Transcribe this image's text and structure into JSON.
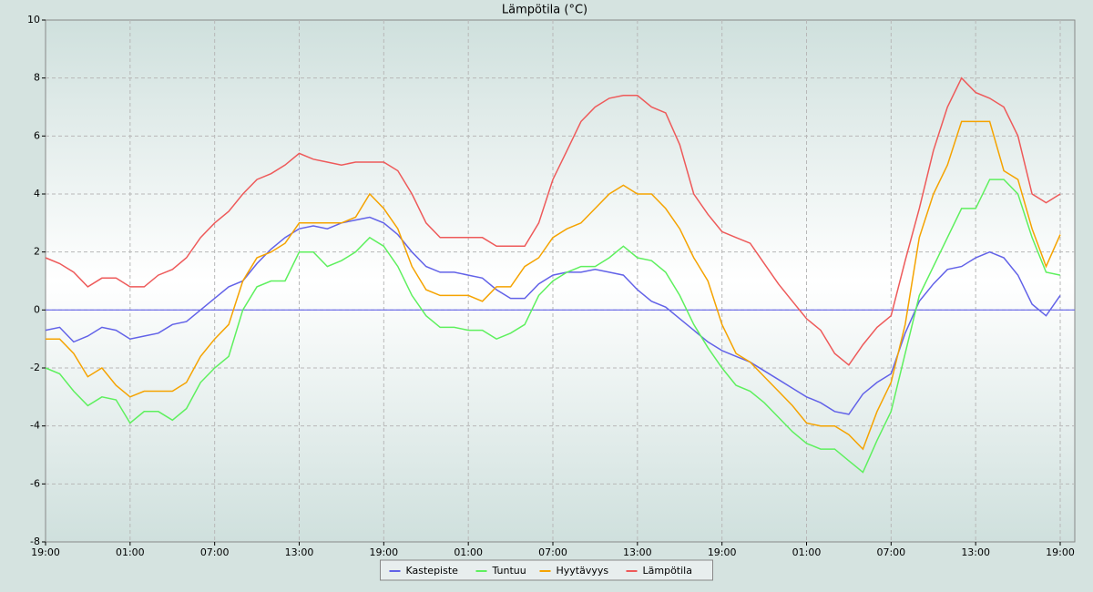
{
  "chart_data": {
    "type": "line",
    "title": "Lämpötila (°C)",
    "categories": [
      "19:00",
      null,
      null,
      null,
      null,
      null,
      "01:00",
      null,
      null,
      null,
      null,
      null,
      "07:00",
      null,
      null,
      null,
      null,
      null,
      "13:00",
      null,
      null,
      null,
      null,
      null,
      "19:00",
      null,
      null,
      null,
      null,
      null,
      "01:00",
      null,
      null,
      null,
      null,
      null,
      "07:00",
      null,
      null,
      null,
      null,
      null,
      "13:00",
      null,
      null,
      null,
      null,
      null,
      "19:00",
      null,
      null,
      null,
      null,
      null,
      "01:00",
      null,
      null,
      null,
      null,
      null,
      "07:00",
      null,
      null,
      null,
      null,
      null,
      "13:00",
      null,
      null,
      null,
      null,
      null,
      "19:00"
    ],
    "ylim": [
      -8,
      10
    ],
    "yticks": [
      -8,
      -6,
      -4,
      -2,
      0,
      2,
      4,
      6,
      8,
      10
    ],
    "grid": true,
    "series": [
      {
        "name": "Kastepiste",
        "color": "#6262e8",
        "values": [
          -0.7,
          -0.6,
          -1.1,
          -0.9,
          -0.6,
          -0.7,
          -1.0,
          -0.9,
          -0.8,
          -0.5,
          -0.4,
          0.0,
          0.4,
          0.8,
          1.0,
          1.6,
          2.1,
          2.5,
          2.8,
          2.9,
          2.8,
          3.0,
          3.1,
          3.2,
          3.0,
          2.6,
          2.0,
          1.5,
          1.3,
          1.3,
          1.2,
          1.1,
          0.7,
          0.4,
          0.4,
          0.9,
          1.2,
          1.3,
          1.3,
          1.4,
          1.3,
          1.2,
          0.7,
          0.3,
          0.1,
          -0.3,
          -0.7,
          -1.1,
          -1.4,
          -1.6,
          -1.8,
          -2.1,
          -2.4,
          -2.7,
          -3.0,
          -3.2,
          -3.5,
          -3.6,
          -2.9,
          -2.5,
          -2.2,
          -0.8,
          0.3,
          0.9,
          1.4,
          1.5,
          1.8,
          2.0,
          1.8,
          1.2,
          0.2,
          -0.2,
          0.5
        ]
      },
      {
        "name": "Tuntuu",
        "color": "#5ef05e",
        "values": [
          -2.0,
          -2.2,
          -2.8,
          -3.3,
          -3.0,
          -3.1,
          -3.9,
          -3.5,
          -3.5,
          -3.8,
          -3.4,
          -2.5,
          -2.0,
          -1.6,
          0.0,
          0.8,
          1.0,
          1.0,
          2.0,
          2.0,
          1.5,
          1.7,
          2.0,
          2.5,
          2.2,
          1.5,
          0.5,
          -0.2,
          -0.6,
          -0.6,
          -0.7,
          -0.7,
          -1.0,
          -0.8,
          -0.5,
          0.5,
          1.0,
          1.3,
          1.5,
          1.5,
          1.8,
          2.2,
          1.8,
          1.7,
          1.3,
          0.5,
          -0.5,
          -1.3,
          -2.0,
          -2.6,
          -2.8,
          -3.2,
          -3.7,
          -4.2,
          -4.6,
          -4.8,
          -4.8,
          -5.2,
          -5.6,
          -4.5,
          -3.5,
          -1.5,
          0.5,
          1.5,
          2.5,
          3.5,
          3.5,
          4.5,
          4.5,
          4.0,
          2.5,
          1.3,
          1.2
        ]
      },
      {
        "name": "Hyytävyys",
        "color": "#f5a300",
        "values": [
          -1.0,
          -1.0,
          -1.5,
          -2.3,
          -2.0,
          -2.6,
          -3.0,
          -2.8,
          -2.8,
          -2.8,
          -2.5,
          -1.6,
          -1.0,
          -0.5,
          1.0,
          1.8,
          2.0,
          2.3,
          3.0,
          3.0,
          3.0,
          3.0,
          3.2,
          4.0,
          3.5,
          2.8,
          1.5,
          0.7,
          0.5,
          0.5,
          0.5,
          0.3,
          0.8,
          0.8,
          1.5,
          1.8,
          2.5,
          2.8,
          3.0,
          3.5,
          4.0,
          4.3,
          4.0,
          4.0,
          3.5,
          2.8,
          1.8,
          1.0,
          -0.5,
          -1.5,
          -1.8,
          -2.3,
          -2.8,
          -3.3,
          -3.9,
          -4.0,
          -4.0,
          -4.3,
          -4.8,
          -3.5,
          -2.5,
          -0.5,
          2.5,
          4.0,
          5.0,
          6.5,
          6.5,
          6.5,
          4.8,
          4.5,
          2.8,
          1.5,
          2.6
        ]
      },
      {
        "name": "Lämpötila",
        "color": "#ee5a5a",
        "values": [
          1.8,
          1.6,
          1.3,
          0.8,
          1.1,
          1.1,
          0.8,
          0.8,
          1.2,
          1.4,
          1.8,
          2.5,
          3.0,
          3.4,
          4.0,
          4.5,
          4.7,
          5.0,
          5.4,
          5.2,
          5.1,
          5.0,
          5.1,
          5.1,
          5.1,
          4.8,
          4.0,
          3.0,
          2.5,
          2.5,
          2.5,
          2.5,
          2.2,
          2.2,
          2.2,
          3.0,
          4.5,
          5.5,
          6.5,
          7.0,
          7.3,
          7.4,
          7.4,
          7.0,
          6.8,
          5.7,
          4.0,
          3.3,
          2.7,
          2.5,
          2.3,
          1.6,
          0.9,
          0.3,
          -0.3,
          -0.7,
          -1.5,
          -1.9,
          -1.2,
          -0.6,
          -0.2,
          1.7,
          3.5,
          5.5,
          7.0,
          8.0,
          7.5,
          7.3,
          7.0,
          6.0,
          4.0,
          3.7,
          4.0
        ]
      }
    ]
  }
}
